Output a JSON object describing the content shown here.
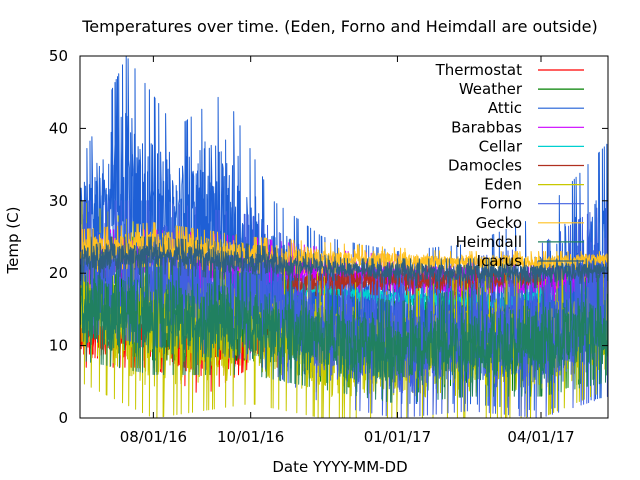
{
  "chart_data": {
    "type": "line",
    "title": "Temperatures over time. (Eden, Forno and Heimdall are outside)",
    "xlabel": "Date YYYY-MM-DD",
    "ylabel": "Temp (C)",
    "xlim": [
      "2016-06-16",
      "2017-05-13"
    ],
    "ylim": [
      0,
      50
    ],
    "x_ticks": [
      "2016-08-01",
      "2016-10-01",
      "2017-01-01",
      "2017-04-01"
    ],
    "x_tick_labels": [
      "08/01/16",
      "10/01/16",
      "01/01/17",
      "04/01/17"
    ],
    "y_ticks": [
      0,
      10,
      20,
      30,
      40,
      50
    ],
    "y_tick_labels": [
      "0",
      "10",
      "20",
      "30",
      "40",
      "50"
    ],
    "grid": false,
    "legend_position": "top-right",
    "series": [
      {
        "name": "Thermostat",
        "color": "#ff0000",
        "points": [
          [
            "2016-06-16",
            [
              7,
              15
            ]
          ],
          [
            "2016-07-01",
            [
              7,
              15
            ]
          ],
          [
            "2016-08-01",
            [
              7,
              15
            ]
          ],
          [
            "2016-09-01",
            [
              3,
              15
            ]
          ],
          [
            "2016-10-01",
            [
              7,
              15
            ]
          ],
          [
            "2016-10-20",
            [
              7,
              15
            ]
          ]
        ]
      },
      {
        "name": "Weather",
        "color": "#008000",
        "points": [
          [
            "2016-06-16",
            [
              10,
              25
            ]
          ],
          [
            "2016-08-01",
            [
              8,
              25
            ]
          ],
          [
            "2016-10-01",
            [
              8,
              22
            ]
          ],
          [
            "2016-11-15",
            [
              5,
              20
            ]
          ],
          [
            "2017-01-01",
            [
              3,
              18
            ]
          ],
          [
            "2017-02-15",
            [
              5,
              20
            ]
          ],
          [
            "2017-04-01",
            [
              3,
              20
            ]
          ],
          [
            "2017-05-13",
            [
              6,
              22
            ]
          ]
        ]
      },
      {
        "name": "Attic",
        "color": "#1e5fd6",
        "points": [
          [
            "2016-06-16",
            [
              15,
              35
            ]
          ],
          [
            "2016-07-15",
            [
              12,
              50
            ]
          ],
          [
            "2016-08-15",
            [
              12,
              40
            ]
          ],
          [
            "2016-09-15",
            [
              10,
              45
            ]
          ],
          [
            "2016-10-15",
            [
              8,
              30
            ]
          ],
          [
            "2016-11-15",
            [
              5,
              25
            ]
          ],
          [
            "2017-01-01",
            [
              2,
              23
            ]
          ],
          [
            "2017-02-15",
            [
              2,
              24
            ]
          ],
          [
            "2017-04-01",
            [
              1,
              28
            ]
          ],
          [
            "2017-05-13",
            [
              3,
              38
            ]
          ]
        ]
      },
      {
        "name": "Barabbas",
        "color": "#cc00ff",
        "points": [
          [
            "2016-06-16",
            [
              18,
              26
            ]
          ],
          [
            "2016-08-01",
            [
              18,
              26
            ]
          ],
          [
            "2016-10-01",
            [
              17,
              25
            ]
          ],
          [
            "2016-12-01",
            [
              17,
              23
            ]
          ],
          [
            "2017-02-01",
            [
              16,
              22
            ]
          ],
          [
            "2017-04-01",
            [
              16,
              21
            ]
          ],
          [
            "2017-05-13",
            [
              17,
              21
            ]
          ]
        ]
      },
      {
        "name": "Cellar",
        "color": "#00d0d0",
        "points": [
          [
            "2016-11-01",
            [
              17,
              19
            ]
          ],
          [
            "2016-12-15",
            [
              16,
              18
            ]
          ],
          [
            "2017-01-15",
            [
              15,
              18
            ]
          ],
          [
            "2017-02-15",
            [
              15,
              17
            ]
          ],
          [
            "2017-03-01",
            [
              14,
              17
            ]
          ],
          [
            "2017-04-01",
            [
              16,
              18
            ]
          ]
        ]
      },
      {
        "name": "Damocles",
        "color": "#b03020",
        "points": [
          [
            "2016-10-20",
            [
              16,
              20
            ]
          ],
          [
            "2016-11-15",
            [
              17,
              21
            ]
          ],
          [
            "2017-02-15",
            [
              17,
              21
            ]
          ],
          [
            "2017-04-01",
            [
              18,
              20
            ]
          ]
        ]
      },
      {
        "name": "Eden",
        "color": "#c8c800",
        "points": [
          [
            "2016-06-16",
            [
              5,
              30
            ]
          ],
          [
            "2016-08-01",
            [
              0,
              26
            ]
          ],
          [
            "2016-10-01",
            [
              2,
              24
            ]
          ],
          [
            "2016-11-15",
            [
              0,
              20
            ]
          ],
          [
            "2017-01-01",
            [
              0,
              17
            ]
          ],
          [
            "2017-02-15",
            [
              0,
              20
            ]
          ],
          [
            "2017-04-01",
            [
              0,
              20
            ]
          ],
          [
            "2017-05-13",
            [
              4,
              22
            ]
          ]
        ]
      },
      {
        "name": "Forno",
        "color": "#4060e0",
        "points": [
          [
            "2016-06-16",
            [
              12,
              30
            ]
          ],
          [
            "2016-08-01",
            [
              10,
              30
            ]
          ],
          [
            "2016-10-01",
            [
              8,
              28
            ]
          ],
          [
            "2016-11-15",
            [
              2,
              22
            ]
          ],
          [
            "2017-01-01",
            [
              0,
              22
            ]
          ],
          [
            "2017-02-15",
            [
              1,
              22
            ]
          ],
          [
            "2017-04-01",
            [
              0,
              24
            ]
          ],
          [
            "2017-05-13",
            [
              3,
              30
            ]
          ]
        ]
      },
      {
        "name": "Gecko",
        "color": "#ffc020",
        "points": [
          [
            "2016-06-16",
            [
              20,
              26
            ]
          ],
          [
            "2016-08-01",
            [
              21,
              27
            ]
          ],
          [
            "2016-10-01",
            [
              20,
              25
            ]
          ],
          [
            "2016-12-01",
            [
              20,
              24
            ]
          ],
          [
            "2017-02-01",
            [
              20,
              23
            ]
          ],
          [
            "2017-04-01",
            [
              20,
              23
            ]
          ],
          [
            "2017-05-13",
            [
              21,
              23
            ]
          ]
        ]
      },
      {
        "name": "Heimdall",
        "color": "#208060",
        "points": [
          [
            "2016-06-16",
            [
              8,
              22
            ]
          ],
          [
            "2016-08-01",
            [
              6,
              22
            ]
          ],
          [
            "2016-10-01",
            [
              6,
              20
            ]
          ],
          [
            "2016-11-15",
            [
              4,
              18
            ]
          ],
          [
            "2017-01-01",
            [
              2,
              16
            ]
          ],
          [
            "2017-02-15",
            [
              3,
              18
            ]
          ],
          [
            "2017-04-01",
            [
              3,
              18
            ]
          ],
          [
            "2017-05-13",
            [
              5,
              20
            ]
          ]
        ]
      },
      {
        "name": "Icarus",
        "color": "#2e5f80",
        "points": [
          [
            "2016-06-16",
            [
              19,
              25
            ]
          ],
          [
            "2016-08-01",
            [
              20,
              25
            ]
          ],
          [
            "2016-10-01",
            [
              19,
              24
            ]
          ],
          [
            "2016-12-01",
            [
              19,
              22
            ]
          ],
          [
            "2017-02-01",
            [
              18,
              22
            ]
          ],
          [
            "2017-04-01",
            [
              18,
              22
            ]
          ],
          [
            "2017-05-13",
            [
              19,
              22
            ]
          ]
        ]
      }
    ]
  }
}
